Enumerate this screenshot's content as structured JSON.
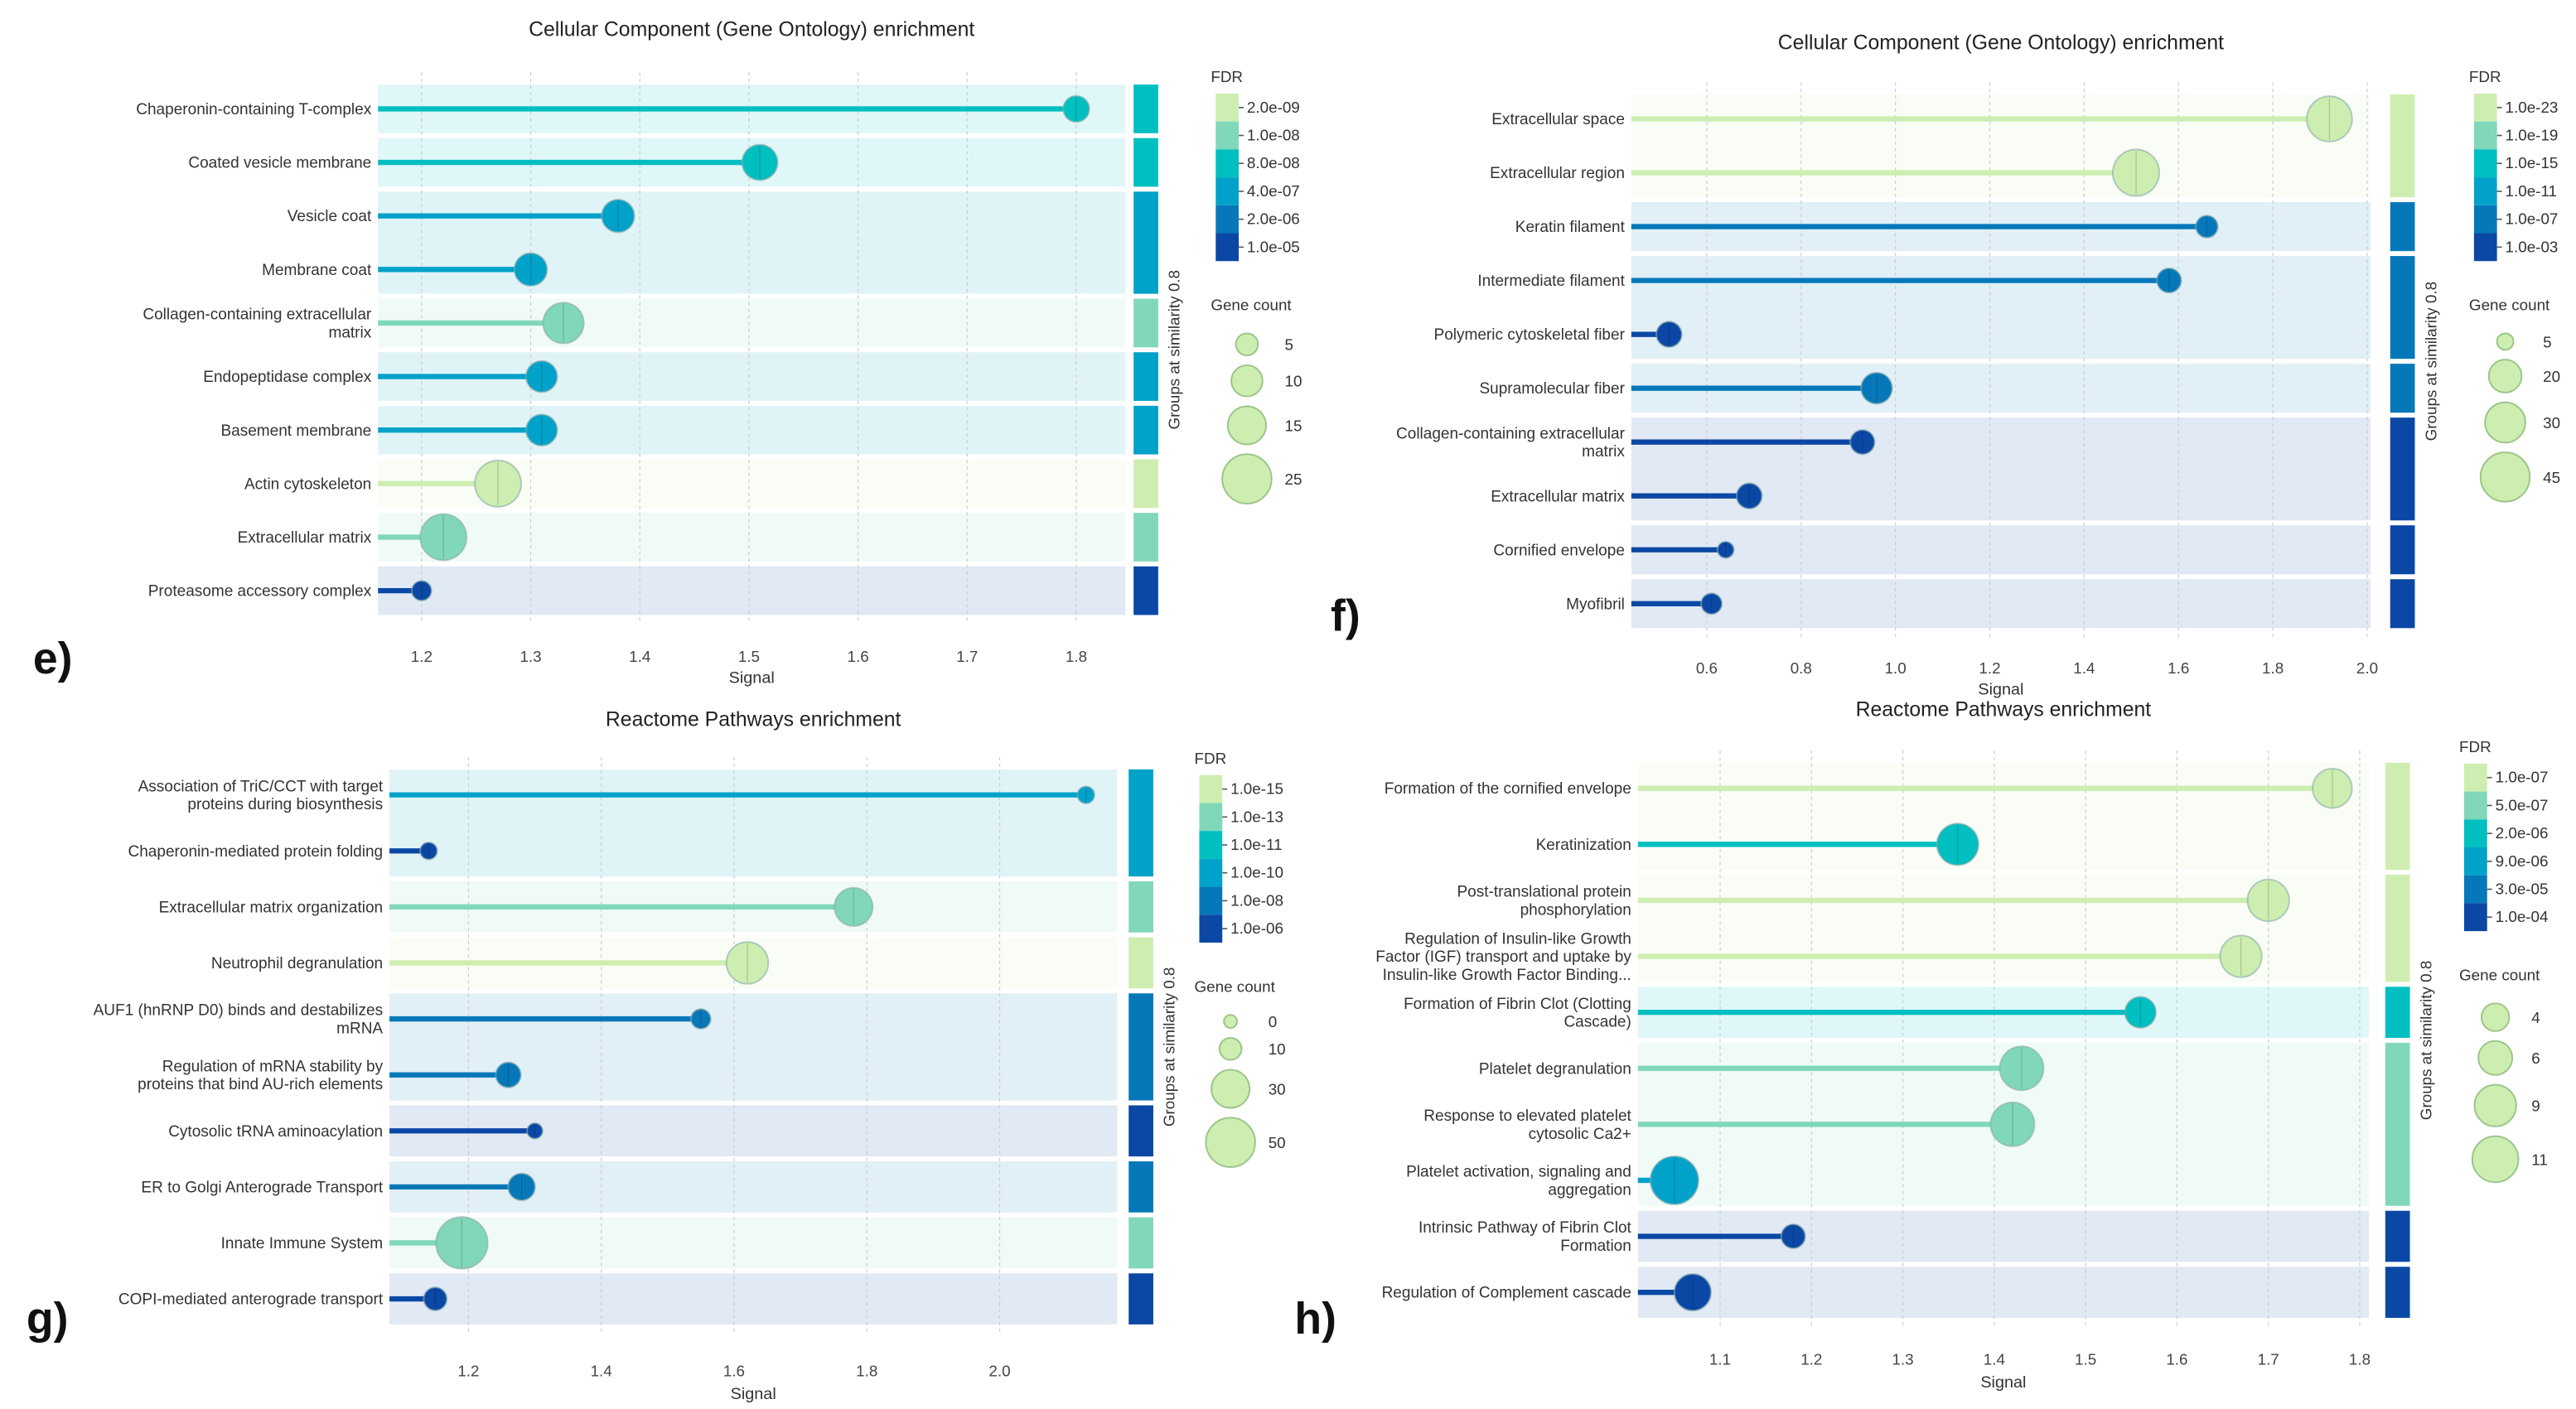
{
  "palette_colors": [
    "#cdeeb0",
    "#80d8b9",
    "#00bfc1",
    "#00a2c9",
    "#0678b9",
    "#0b48a5"
  ],
  "chart_data": [
    {
      "type": "lollipop",
      "panel_label": "e)",
      "title": "Cellular Component (Gene Ontology) enrichment",
      "xlabel": "Signal",
      "side_label": "Groups at similarity 0.8",
      "xlim": [
        1.16,
        1.845
      ],
      "xticks": [
        "1.2",
        "1.3",
        "1.4",
        "1.5",
        "1.6",
        "1.7",
        "1.8"
      ],
      "grid": true,
      "fdr_legend": {
        "title": "FDR",
        "ticks": [
          "2.0e-09",
          "1.0e-08",
          "8.0e-08",
          "4.0e-07",
          "2.0e-06",
          "1.0e-05"
        ]
      },
      "size_legend": {
        "title": "Gene count",
        "values": [
          5,
          10,
          15,
          25
        ]
      },
      "items": [
        {
          "label": [
            "Chaperonin-containing T-complex"
          ],
          "signal": 1.8,
          "fdr": "8.0e-08",
          "count": 7
        },
        {
          "label": [
            "Coated vesicle membrane"
          ],
          "signal": 1.51,
          "fdr": "8.0e-08",
          "count": 13
        },
        {
          "label": [
            "Vesicle coat"
          ],
          "signal": 1.38,
          "fdr": "4.0e-07",
          "count": 11
        },
        {
          "label": [
            "Membrane coat"
          ],
          "signal": 1.3,
          "fdr": "4.0e-07",
          "count": 11
        },
        {
          "label": [
            "Collagen-containing extracellular",
            "matrix"
          ],
          "signal": 1.33,
          "fdr": "1.0e-08",
          "count": 17
        },
        {
          "label": [
            "Endopeptidase complex"
          ],
          "signal": 1.31,
          "fdr": "4.0e-07",
          "count": 10
        },
        {
          "label": [
            "Basement membrane"
          ],
          "signal": 1.31,
          "fdr": "4.0e-07",
          "count": 10
        },
        {
          "label": [
            "Actin cytoskeleton"
          ],
          "signal": 1.27,
          "fdr": "2.0e-09",
          "count": 22
        },
        {
          "label": [
            "Extracellular matrix"
          ],
          "signal": 1.22,
          "fdr": "1.0e-08",
          "count": 22
        },
        {
          "label": [
            "Proteasome accessory complex"
          ],
          "signal": 1.2,
          "fdr": "1.0e-05",
          "count": 4
        }
      ],
      "groups": [
        [
          0
        ],
        [
          1
        ],
        [
          2,
          3
        ],
        [
          4
        ],
        [
          5
        ],
        [
          6
        ],
        [
          7
        ],
        [
          8
        ],
        [
          9
        ]
      ]
    },
    {
      "type": "lollipop",
      "panel_label": "f)",
      "title": "Cellular Component (Gene Ontology) enrichment",
      "xlabel": "Signal",
      "side_label": "Groups at similarity 0.8",
      "xlim": [
        0.44,
        2.007
      ],
      "xticks": [
        "0.6",
        "0.8",
        "1.0",
        "1.2",
        "1.4",
        "1.6",
        "1.8",
        "2.0"
      ],
      "grid": true,
      "fdr_legend": {
        "title": "FDR",
        "ticks": [
          "1.0e-23",
          "1.0e-19",
          "1.0e-15",
          "1.0e-11",
          "1.0e-07",
          "1.0e-03"
        ]
      },
      "size_legend": {
        "title": "Gene count",
        "values": [
          5,
          20,
          30,
          45
        ]
      },
      "items": [
        {
          "label": [
            "Extracellular space"
          ],
          "signal": 1.92,
          "fdr": "1.0e-23",
          "count": 38
        },
        {
          "label": [
            "Extracellular region"
          ],
          "signal": 1.51,
          "fdr": "1.0e-23",
          "count": 40
        },
        {
          "label": [
            "Keratin filament"
          ],
          "signal": 1.66,
          "fdr": "1.0e-07",
          "count": 9
        },
        {
          "label": [
            "Intermediate filament"
          ],
          "signal": 1.58,
          "fdr": "1.0e-07",
          "count": 11
        },
        {
          "label": [
            "Polymeric cytoskeletal fiber"
          ],
          "signal": 0.52,
          "fdr": "1.0e-03",
          "count": 12
        },
        {
          "label": [
            "Supramolecular fiber"
          ],
          "signal": 0.96,
          "fdr": "1.0e-07",
          "count": 18
        },
        {
          "label": [
            "Collagen-containing extracellular",
            "matrix"
          ],
          "signal": 0.93,
          "fdr": "1.0e-03",
          "count": 11
        },
        {
          "label": [
            "Extracellular matrix"
          ],
          "signal": 0.69,
          "fdr": "1.0e-03",
          "count": 12
        },
        {
          "label": [
            "Cornified envelope"
          ],
          "signal": 0.64,
          "fdr": "1.0e-03",
          "count": 5
        },
        {
          "label": [
            "Myofibril"
          ],
          "signal": 0.61,
          "fdr": "1.0e-03",
          "count": 8
        }
      ],
      "groups": [
        [
          0,
          1
        ],
        [
          2
        ],
        [
          3,
          4
        ],
        [
          5
        ],
        [
          6,
          7
        ],
        [
          8
        ],
        [
          9
        ]
      ]
    },
    {
      "type": "lollipop",
      "panel_label": "g)",
      "title": "Reactome Pathways enrichment",
      "xlabel": "Signal",
      "side_label": "Groups at similarity 0.8",
      "xlim": [
        1.081,
        2.177
      ],
      "xticks": [
        "1.2",
        "1.4",
        "1.6",
        "1.8",
        "2.0"
      ],
      "grid": true,
      "fdr_legend": {
        "title": "FDR",
        "ticks": [
          "1.0e-15",
          "1.0e-13",
          "1.0e-11",
          "1.0e-10",
          "1.0e-08",
          "1.0e-06"
        ]
      },
      "size_legend": {
        "title": "Gene count",
        "values": [
          0,
          10,
          30,
          50
        ]
      },
      "items": [
        {
          "label": [
            "Association of TriC/CCT with target",
            "proteins during biosynthesis"
          ],
          "signal": 2.13,
          "fdr": "1.0e-10",
          "count": 6
        },
        {
          "label": [
            "Chaperonin-mediated protein folding"
          ],
          "signal": 1.14,
          "fdr": "1.0e-06",
          "count": 6
        },
        {
          "label": [
            "Extracellular matrix organization"
          ],
          "signal": 1.78,
          "fdr": "1.0e-13",
          "count": 30
        },
        {
          "label": [
            "Neutrophil degranulation"
          ],
          "signal": 1.62,
          "fdr": "1.0e-15",
          "count": 36
        },
        {
          "label": [
            "AUF1 (hnRNP D0) binds and destabilizes",
            "mRNA"
          ],
          "signal": 1.55,
          "fdr": "1.0e-08",
          "count": 8
        },
        {
          "label": [
            "Regulation of mRNA stability by",
            "proteins that bind AU-rich elements"
          ],
          "signal": 1.26,
          "fdr": "1.0e-08",
          "count": 13
        },
        {
          "label": [
            "Cytosolic tRNA aminoacylation"
          ],
          "signal": 1.3,
          "fdr": "1.0e-06",
          "count": 5
        },
        {
          "label": [
            "ER to Golgi Anterograde Transport"
          ],
          "signal": 1.28,
          "fdr": "1.0e-08",
          "count": 15
        },
        {
          "label": [
            "Innate Immune System"
          ],
          "signal": 1.19,
          "fdr": "1.0e-13",
          "count": 55
        },
        {
          "label": [
            "COPI-mediated anterograde transport"
          ],
          "signal": 1.15,
          "fdr": "1.0e-06",
          "count": 11
        }
      ],
      "groups": [
        [
          0,
          1
        ],
        [
          2
        ],
        [
          3
        ],
        [
          4,
          5
        ],
        [
          6
        ],
        [
          7
        ],
        [
          8
        ],
        [
          9
        ]
      ]
    },
    {
      "type": "lollipop",
      "panel_label": "h)",
      "title": "Reactome Pathways enrichment",
      "xlabel": "Signal",
      "side_label": "Groups at similarity 0.8",
      "xlim": [
        1.01,
        1.81
      ],
      "xticks": [
        "1.1",
        "1.2",
        "1.3",
        "1.4",
        "1.5",
        "1.6",
        "1.7",
        "1.8"
      ],
      "grid": true,
      "fdr_legend": {
        "title": "FDR",
        "ticks": [
          "1.0e-07",
          "5.0e-07",
          "2.0e-06",
          "9.0e-06",
          "3.0e-05",
          "1.0e-04"
        ]
      },
      "size_legend": {
        "title": "Gene count",
        "values": [
          4,
          6,
          9,
          11
        ]
      },
      "items": [
        {
          "label": [
            "Formation of the cornified envelope"
          ],
          "signal": 1.77,
          "fdr": "1.0e-07",
          "count": 8
        },
        {
          "label": [
            "Keratinization"
          ],
          "signal": 1.36,
          "fdr": "2.0e-06",
          "count": 9
        },
        {
          "label": [
            "Post-translational protein",
            "phosphorylation"
          ],
          "signal": 1.7,
          "fdr": "1.0e-07",
          "count": 9
        },
        {
          "label": [
            "Regulation of Insulin-like Growth",
            "Factor (IGF) transport and uptake by",
            "Insulin-like Growth Factor Binding..."
          ],
          "signal": 1.67,
          "fdr": "1.0e-07",
          "count": 9
        },
        {
          "label": [
            "Formation of Fibrin Clot (Clotting",
            "Cascade)"
          ],
          "signal": 1.56,
          "fdr": "2.0e-06",
          "count": 5
        },
        {
          "label": [
            "Platelet degranulation"
          ],
          "signal": 1.43,
          "fdr": "5.0e-07",
          "count": 10
        },
        {
          "label": [
            "Response to elevated platelet",
            "cytosolic Ca2+"
          ],
          "signal": 1.42,
          "fdr": "5.0e-07",
          "count": 10
        },
        {
          "label": [
            "Platelet activation, signaling and",
            "aggregation"
          ],
          "signal": 1.05,
          "fdr": "9.0e-06",
          "count": 12
        },
        {
          "label": [
            "Intrinsic Pathway of Fibrin Clot",
            "Formation"
          ],
          "signal": 1.18,
          "fdr": "1.0e-04",
          "count": 3
        },
        {
          "label": [
            "Regulation of Complement cascade"
          ],
          "signal": 1.07,
          "fdr": "1.0e-04",
          "count": 7
        }
      ],
      "groups": [
        [
          0,
          1
        ],
        [
          2,
          3
        ],
        [
          4
        ],
        [
          5,
          6,
          7
        ],
        [
          8
        ],
        [
          9
        ]
      ]
    }
  ]
}
